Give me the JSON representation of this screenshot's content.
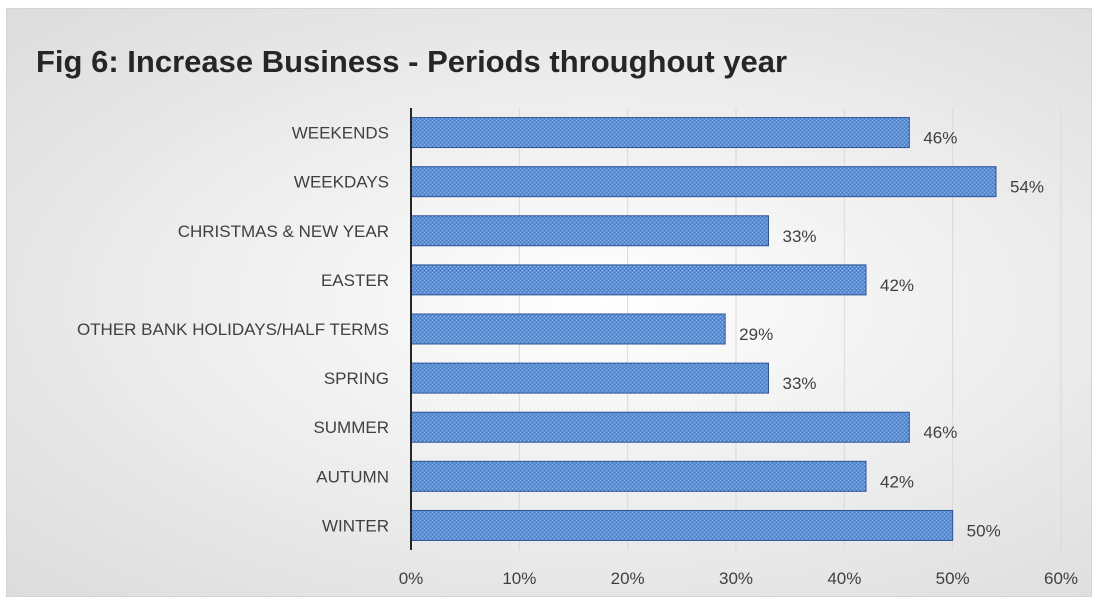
{
  "chart_data": {
    "type": "bar",
    "orientation": "horizontal",
    "title": "Fig 6: Increase Business - Periods throughout year",
    "categories": [
      "WEEKENDS",
      "WEEKDAYS",
      "CHRISTMAS & NEW YEAR",
      "EASTER",
      "OTHER BANK HOLIDAYS/HALF TERMS",
      "SPRING",
      "SUMMER",
      "AUTUMN",
      "WINTER"
    ],
    "values": [
      46,
      54,
      33,
      42,
      29,
      33,
      46,
      42,
      50
    ],
    "data_labels": [
      "46%",
      "54%",
      "33%",
      "42%",
      "29%",
      "33%",
      "46%",
      "42%",
      "50%"
    ],
    "xlim": [
      0,
      60
    ],
    "x_ticks": [
      0,
      10,
      20,
      30,
      40,
      50,
      60
    ],
    "x_tick_labels": [
      "0%",
      "10%",
      "20%",
      "30%",
      "40%",
      "50%",
      "60%"
    ],
    "grid": true,
    "legend": "none",
    "bar_color": "#5b8fd6",
    "bar_edge_color": "#2f5597"
  }
}
